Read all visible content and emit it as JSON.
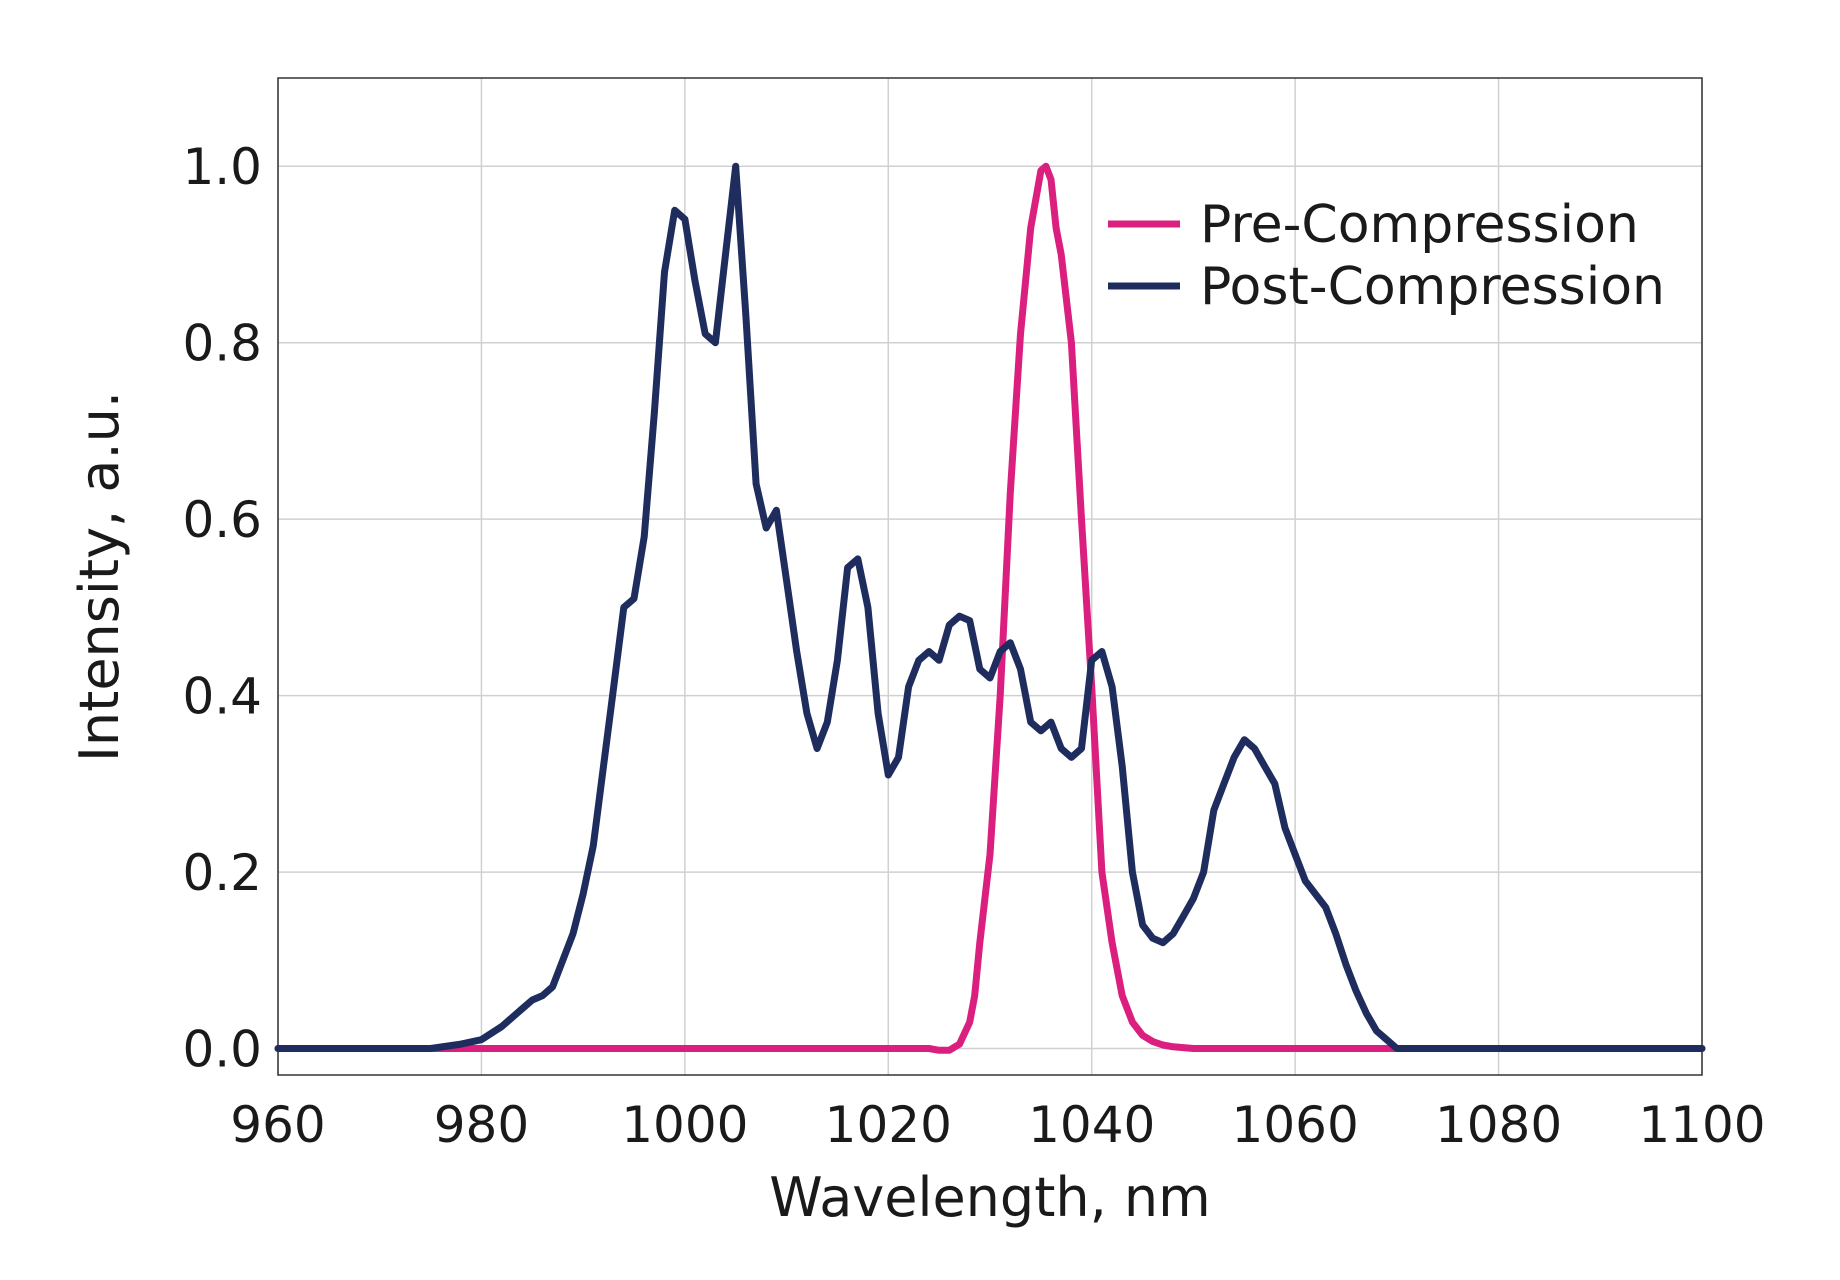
{
  "chart_data": {
    "type": "line",
    "title": "",
    "xlabel": "Wavelength, nm",
    "ylabel": "Intensity, a.u.",
    "xlim": [
      960,
      1100
    ],
    "ylim": [
      -0.03,
      1.1
    ],
    "x_ticks": [
      960,
      980,
      1000,
      1020,
      1040,
      1060,
      1080,
      1100
    ],
    "x_tick_labels": [
      "960",
      "980",
      "1000",
      "1020",
      "1040",
      "1060",
      "1080",
      "1100"
    ],
    "y_ticks": [
      0.0,
      0.2,
      0.4,
      0.6,
      0.8,
      1.0
    ],
    "y_tick_labels": [
      "0.0",
      "0.2",
      "0.4",
      "0.6",
      "0.8",
      "1.0"
    ],
    "grid": true,
    "legend_position": "top-right",
    "series": [
      {
        "name": "Pre-Compression",
        "color": "#DB1F7E",
        "x": [
          960,
          1000,
          1024,
          1025,
          1026,
          1027,
          1028,
          1028.5,
          1029,
          1030,
          1031,
          1032,
          1033,
          1034,
          1035,
          1035.5,
          1036,
          1036.5,
          1037,
          1038,
          1039,
          1040,
          1041,
          1042,
          1043,
          1044,
          1045,
          1046,
          1047,
          1048,
          1050,
          1060,
          1080,
          1100
        ],
        "y": [
          0,
          0,
          0,
          -0.002,
          -0.002,
          0.005,
          0.03,
          0.06,
          0.12,
          0.22,
          0.4,
          0.63,
          0.81,
          0.93,
          0.995,
          1.0,
          0.985,
          0.93,
          0.9,
          0.8,
          0.6,
          0.41,
          0.2,
          0.12,
          0.06,
          0.03,
          0.015,
          0.008,
          0.004,
          0.002,
          0.0,
          0.0,
          0.0,
          0.0
        ]
      },
      {
        "name": "Post-Compression",
        "color": "#1F2D5E",
        "x": [
          960,
          975,
          978,
          980,
          982,
          984,
          985,
          986,
          987,
          988,
          989,
          990,
          991,
          992,
          993,
          994,
          995,
          996,
          997,
          998,
          999,
          1000,
          1001,
          1002,
          1003,
          1004,
          1005,
          1006,
          1007,
          1008,
          1009,
          1010,
          1011,
          1012,
          1013,
          1014,
          1015,
          1016,
          1017,
          1018,
          1019,
          1020,
          1021,
          1022,
          1023,
          1024,
          1025,
          1026,
          1027,
          1028,
          1029,
          1030,
          1031,
          1032,
          1033,
          1034,
          1035,
          1036,
          1037,
          1038,
          1039,
          1040,
          1041,
          1042,
          1043,
          1044,
          1045,
          1046,
          1047,
          1048,
          1049,
          1050,
          1051,
          1052,
          1053,
          1054,
          1055,
          1056,
          1057,
          1058,
          1059,
          1060,
          1061,
          1062,
          1063,
          1064,
          1065,
          1066,
          1067,
          1068,
          1069,
          1070,
          1072,
          1074,
          1076,
          1078,
          1080,
          1082,
          1084,
          1100
        ],
        "y": [
          0,
          0,
          0.005,
          0.01,
          0.025,
          0.045,
          0.055,
          0.06,
          0.07,
          0.1,
          0.13,
          0.175,
          0.23,
          0.32,
          0.41,
          0.5,
          0.51,
          0.58,
          0.72,
          0.88,
          0.95,
          0.94,
          0.87,
          0.81,
          0.8,
          0.9,
          1.0,
          0.83,
          0.64,
          0.59,
          0.61,
          0.53,
          0.45,
          0.38,
          0.34,
          0.37,
          0.44,
          0.545,
          0.555,
          0.5,
          0.38,
          0.31,
          0.33,
          0.41,
          0.44,
          0.45,
          0.44,
          0.48,
          0.49,
          0.485,
          0.43,
          0.42,
          0.45,
          0.46,
          0.43,
          0.37,
          0.36,
          0.37,
          0.34,
          0.33,
          0.34,
          0.44,
          0.45,
          0.41,
          0.32,
          0.2,
          0.14,
          0.125,
          0.12,
          0.13,
          0.15,
          0.17,
          0.2,
          0.27,
          0.3,
          0.33,
          0.35,
          0.34,
          0.32,
          0.3,
          0.25,
          0.22,
          0.19,
          0.175,
          0.16,
          0.13,
          0.095,
          0.065,
          0.04,
          0.02,
          0.01,
          0.0,
          0.0,
          0.0,
          0.0,
          0.0,
          0.0,
          0.0,
          0.0,
          0.0
        ]
      }
    ]
  }
}
